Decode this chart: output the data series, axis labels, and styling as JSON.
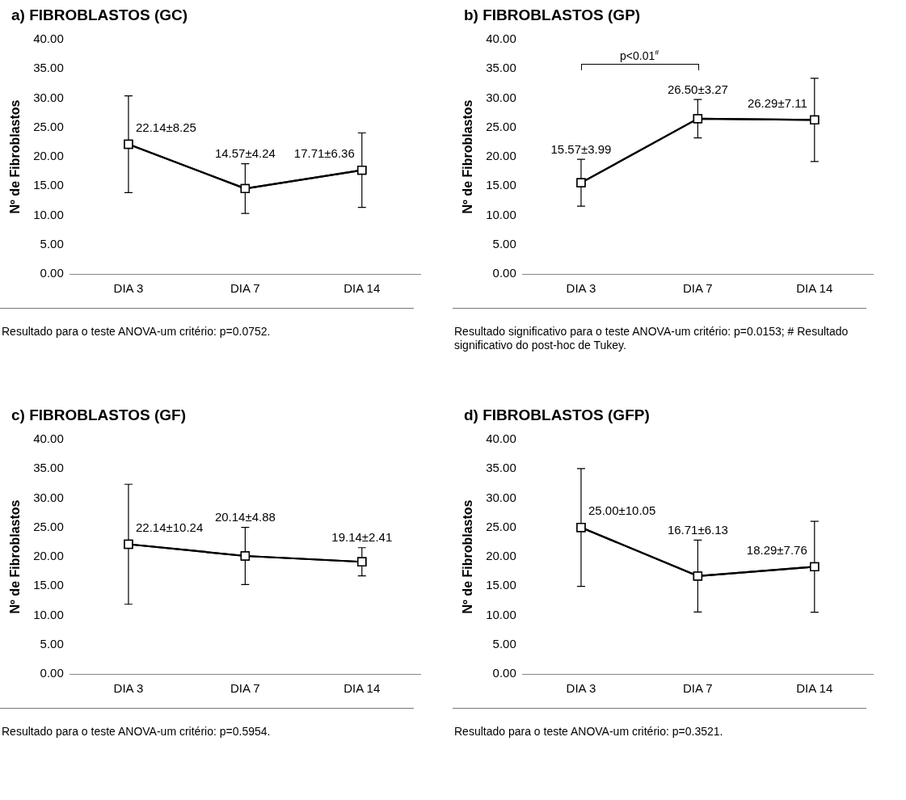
{
  "chart_data": [
    {
      "type": "line",
      "title": "a) FIBROBLASTOS (GC)",
      "ylabel": "Nº de Fibroblastos",
      "categories": [
        "DIA 3",
        "DIA 7",
        "DIA 14"
      ],
      "color": "#000000",
      "marker": "square",
      "grid": false,
      "values": [
        22.14,
        14.57,
        17.71
      ],
      "errors": [
        8.25,
        4.24,
        6.36
      ],
      "value_labels": [
        "22.14±8.25",
        "14.57±4.24",
        "17.71±6.36"
      ],
      "ylim": [
        0,
        40
      ],
      "yticks": [
        {
          "value": 0,
          "label": "0.00"
        },
        {
          "value": 5,
          "label": "5.00"
        },
        {
          "value": 10,
          "label": "10.00"
        },
        {
          "value": 15,
          "label": "15.00"
        },
        {
          "value": 20,
          "label": "20.00"
        },
        {
          "value": 25,
          "label": "25.00"
        },
        {
          "value": 30,
          "label": "30.00"
        },
        {
          "value": 35,
          "label": "35.00"
        },
        {
          "value": 40,
          "label": "40.00"
        }
      ],
      "annotations": [
        "Resultado para o teste ANOVA-um critério: p=0.0752."
      ]
    },
    {
      "type": "line",
      "title": "b) FIBROBLASTOS (GP)",
      "ylabel": "Nº de Fibroblastos",
      "categories": [
        "DIA 3",
        "DIA 7",
        "DIA 14"
      ],
      "color": "#000000",
      "marker": "square",
      "grid": false,
      "values": [
        15.57,
        26.5,
        26.29
      ],
      "errors": [
        3.99,
        3.27,
        7.11
      ],
      "value_labels": [
        "15.57±3.99",
        "26.50±3.27",
        "26.29±7.11"
      ],
      "ylim": [
        0,
        40
      ],
      "yticks": [
        {
          "value": 0,
          "label": "0.00"
        },
        {
          "value": 5,
          "label": "5.00"
        },
        {
          "value": 10,
          "label": "10.00"
        },
        {
          "value": 15,
          "label": "15.00"
        },
        {
          "value": 20,
          "label": "20.00"
        },
        {
          "value": 25,
          "label": "25.00"
        },
        {
          "value": 30,
          "label": "30.00"
        },
        {
          "value": 35,
          "label": "35.00"
        },
        {
          "value": 40,
          "label": "40.00"
        }
      ],
      "annotations": [
        "p<0.01$^{#}$",
        "Resultado significativo para o teste ANOVA-um critério: p=0.0153; # Resultado significativo do post-hoc de Tukey."
      ]
    },
    {
      "type": "line",
      "title": "c) FIBROBLASTOS (GF)",
      "ylabel": "Nº de Fibroblastos",
      "categories": [
        "DIA 3",
        "DIA 7",
        "DIA 14"
      ],
      "color": "#000000",
      "marker": "square",
      "grid": false,
      "values": [
        22.14,
        20.14,
        19.14
      ],
      "errors": [
        10.24,
        4.88,
        2.41
      ],
      "value_labels": [
        "22.14±10.24",
        "20.14±4.88",
        "19.14±2.41"
      ],
      "ylim": [
        0,
        40
      ],
      "yticks": [
        {
          "value": 0,
          "label": "0.00"
        },
        {
          "value": 5,
          "label": "5.00"
        },
        {
          "value": 10,
          "label": "10.00"
        },
        {
          "value": 15,
          "label": "15.00"
        },
        {
          "value": 20,
          "label": "20.00"
        },
        {
          "value": 25,
          "label": "25.00"
        },
        {
          "value": 30,
          "label": "30.00"
        },
        {
          "value": 35,
          "label": "35.00"
        },
        {
          "value": 40,
          "label": "40.00"
        }
      ],
      "annotations": [
        "Resultado para o teste ANOVA-um critério: p=0.5954."
      ]
    },
    {
      "type": "line",
      "title": "d) FIBROBLASTOS (GFP)",
      "ylabel": "Nº de Fibroblastos",
      "categories": [
        "DIA 3",
        "DIA 7",
        "DIA 14"
      ],
      "color": "#000000",
      "marker": "square",
      "grid": false,
      "values": [
        25.0,
        16.71,
        18.29
      ],
      "errors": [
        10.05,
        6.13,
        7.76
      ],
      "value_labels": [
        "25.00±10.05",
        "16.71±6.13",
        "18.29±7.76"
      ],
      "ylim": [
        0,
        40
      ],
      "yticks": [
        {
          "value": 0,
          "label": "0.00"
        },
        {
          "value": 5,
          "label": "5.00"
        },
        {
          "value": 10,
          "label": "10.00"
        },
        {
          "value": 15,
          "label": "15.00"
        },
        {
          "value": 20,
          "label": "20.00"
        },
        {
          "value": 25,
          "label": "25.00"
        },
        {
          "value": 30,
          "label": "30.00"
        },
        {
          "value": 35,
          "label": "35.00"
        },
        {
          "value": 40,
          "label": "40.00"
        }
      ],
      "annotations": [
        "Resultado para o teste ANOVA-um critério: p=0.3521."
      ]
    }
  ]
}
